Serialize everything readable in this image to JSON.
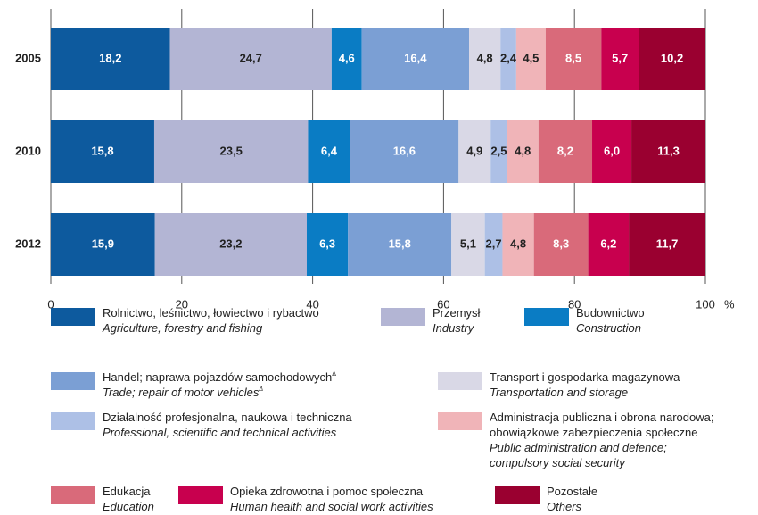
{
  "chart_data": {
    "type": "stacked_barh",
    "categories": [
      "2005",
      "2010",
      "2012"
    ],
    "xlim": [
      0,
      100
    ],
    "xticks": [
      0,
      20,
      40,
      60,
      80,
      100
    ],
    "x_unit": "%",
    "grid": true,
    "series": [
      {
        "name": "Rolnictwo, leśnictwo, łowiectwo i rybactwo",
        "name_en": "Agriculture, forestry and fishing",
        "color": "#0d5a9e",
        "text_color": "#ffffff",
        "values": [
          18.2,
          15.8,
          15.9
        ],
        "value_labels": [
          "18,2",
          "15,8",
          "15,9"
        ]
      },
      {
        "name": "Przemysł",
        "name_en": "Industry",
        "color": "#b3b5d4",
        "text_color": "#222222",
        "values": [
          24.7,
          23.5,
          23.2
        ],
        "value_labels": [
          "24,7",
          "23,5",
          "23,2"
        ]
      },
      {
        "name": "Budownictwo",
        "name_en": "Construction",
        "color": "#0a7cc4",
        "text_color": "#ffffff",
        "values": [
          4.6,
          6.4,
          6.3
        ],
        "value_labels": [
          "4,6",
          "6,4",
          "6,3"
        ]
      },
      {
        "name": "Handel; naprawa pojazdów samochodowych",
        "name_en": "Trade; repair of motor vehicles",
        "mark": "Δ",
        "color": "#7b9fd4",
        "text_color": "#ffffff",
        "values": [
          16.4,
          16.6,
          15.8
        ],
        "value_labels": [
          "16,4",
          "16,6",
          "15,8"
        ]
      },
      {
        "name": "Transport i gospodarka magazynowa",
        "name_en": "Transportation and storage",
        "color": "#d9d8e6",
        "text_color": "#222222",
        "values": [
          4.8,
          4.9,
          5.1
        ],
        "value_labels": [
          "4,8",
          "4,9",
          "5,1"
        ]
      },
      {
        "name": "Działalność profesjonalna, naukowa i techniczna",
        "name_en": "Professional, scientific and technical activities",
        "color": "#adc0e6",
        "text_color": "#222222",
        "values": [
          2.4,
          2.5,
          2.7
        ],
        "value_labels": [
          "2,4",
          "2,5",
          "2,7"
        ]
      },
      {
        "name": [
          "Administracja publiczna i obrona narodowa;",
          "obowiązkowe zabezpieczenia społeczne"
        ],
        "name_en": [
          "Public administration and defence;",
          "compulsory social security"
        ],
        "color": "#f0b4b8",
        "text_color": "#222222",
        "values": [
          4.5,
          4.8,
          4.8
        ],
        "value_labels": [
          "4,5",
          "4,8",
          "4,8"
        ]
      },
      {
        "name": "Edukacja",
        "name_en": "Education",
        "color": "#d96a7a",
        "text_color": "#ffffff",
        "values": [
          8.5,
          8.2,
          8.3
        ],
        "value_labels": [
          "8,5",
          "8,2",
          "8,3"
        ]
      },
      {
        "name": "Opieka zdrowotna i pomoc społeczna",
        "name_en": "Human health and social work activities",
        "color": "#c8004e",
        "text_color": "#ffffff",
        "values": [
          5.7,
          6.0,
          6.2
        ],
        "value_labels": [
          "5,7",
          "6,0",
          "6,2"
        ]
      },
      {
        "name": "Pozostałe",
        "name_en": "Others",
        "color": "#9a0030",
        "text_color": "#ffffff",
        "values": [
          10.2,
          11.3,
          11.7
        ],
        "value_labels": [
          "10,2",
          "11,3",
          "11,7"
        ]
      }
    ]
  }
}
